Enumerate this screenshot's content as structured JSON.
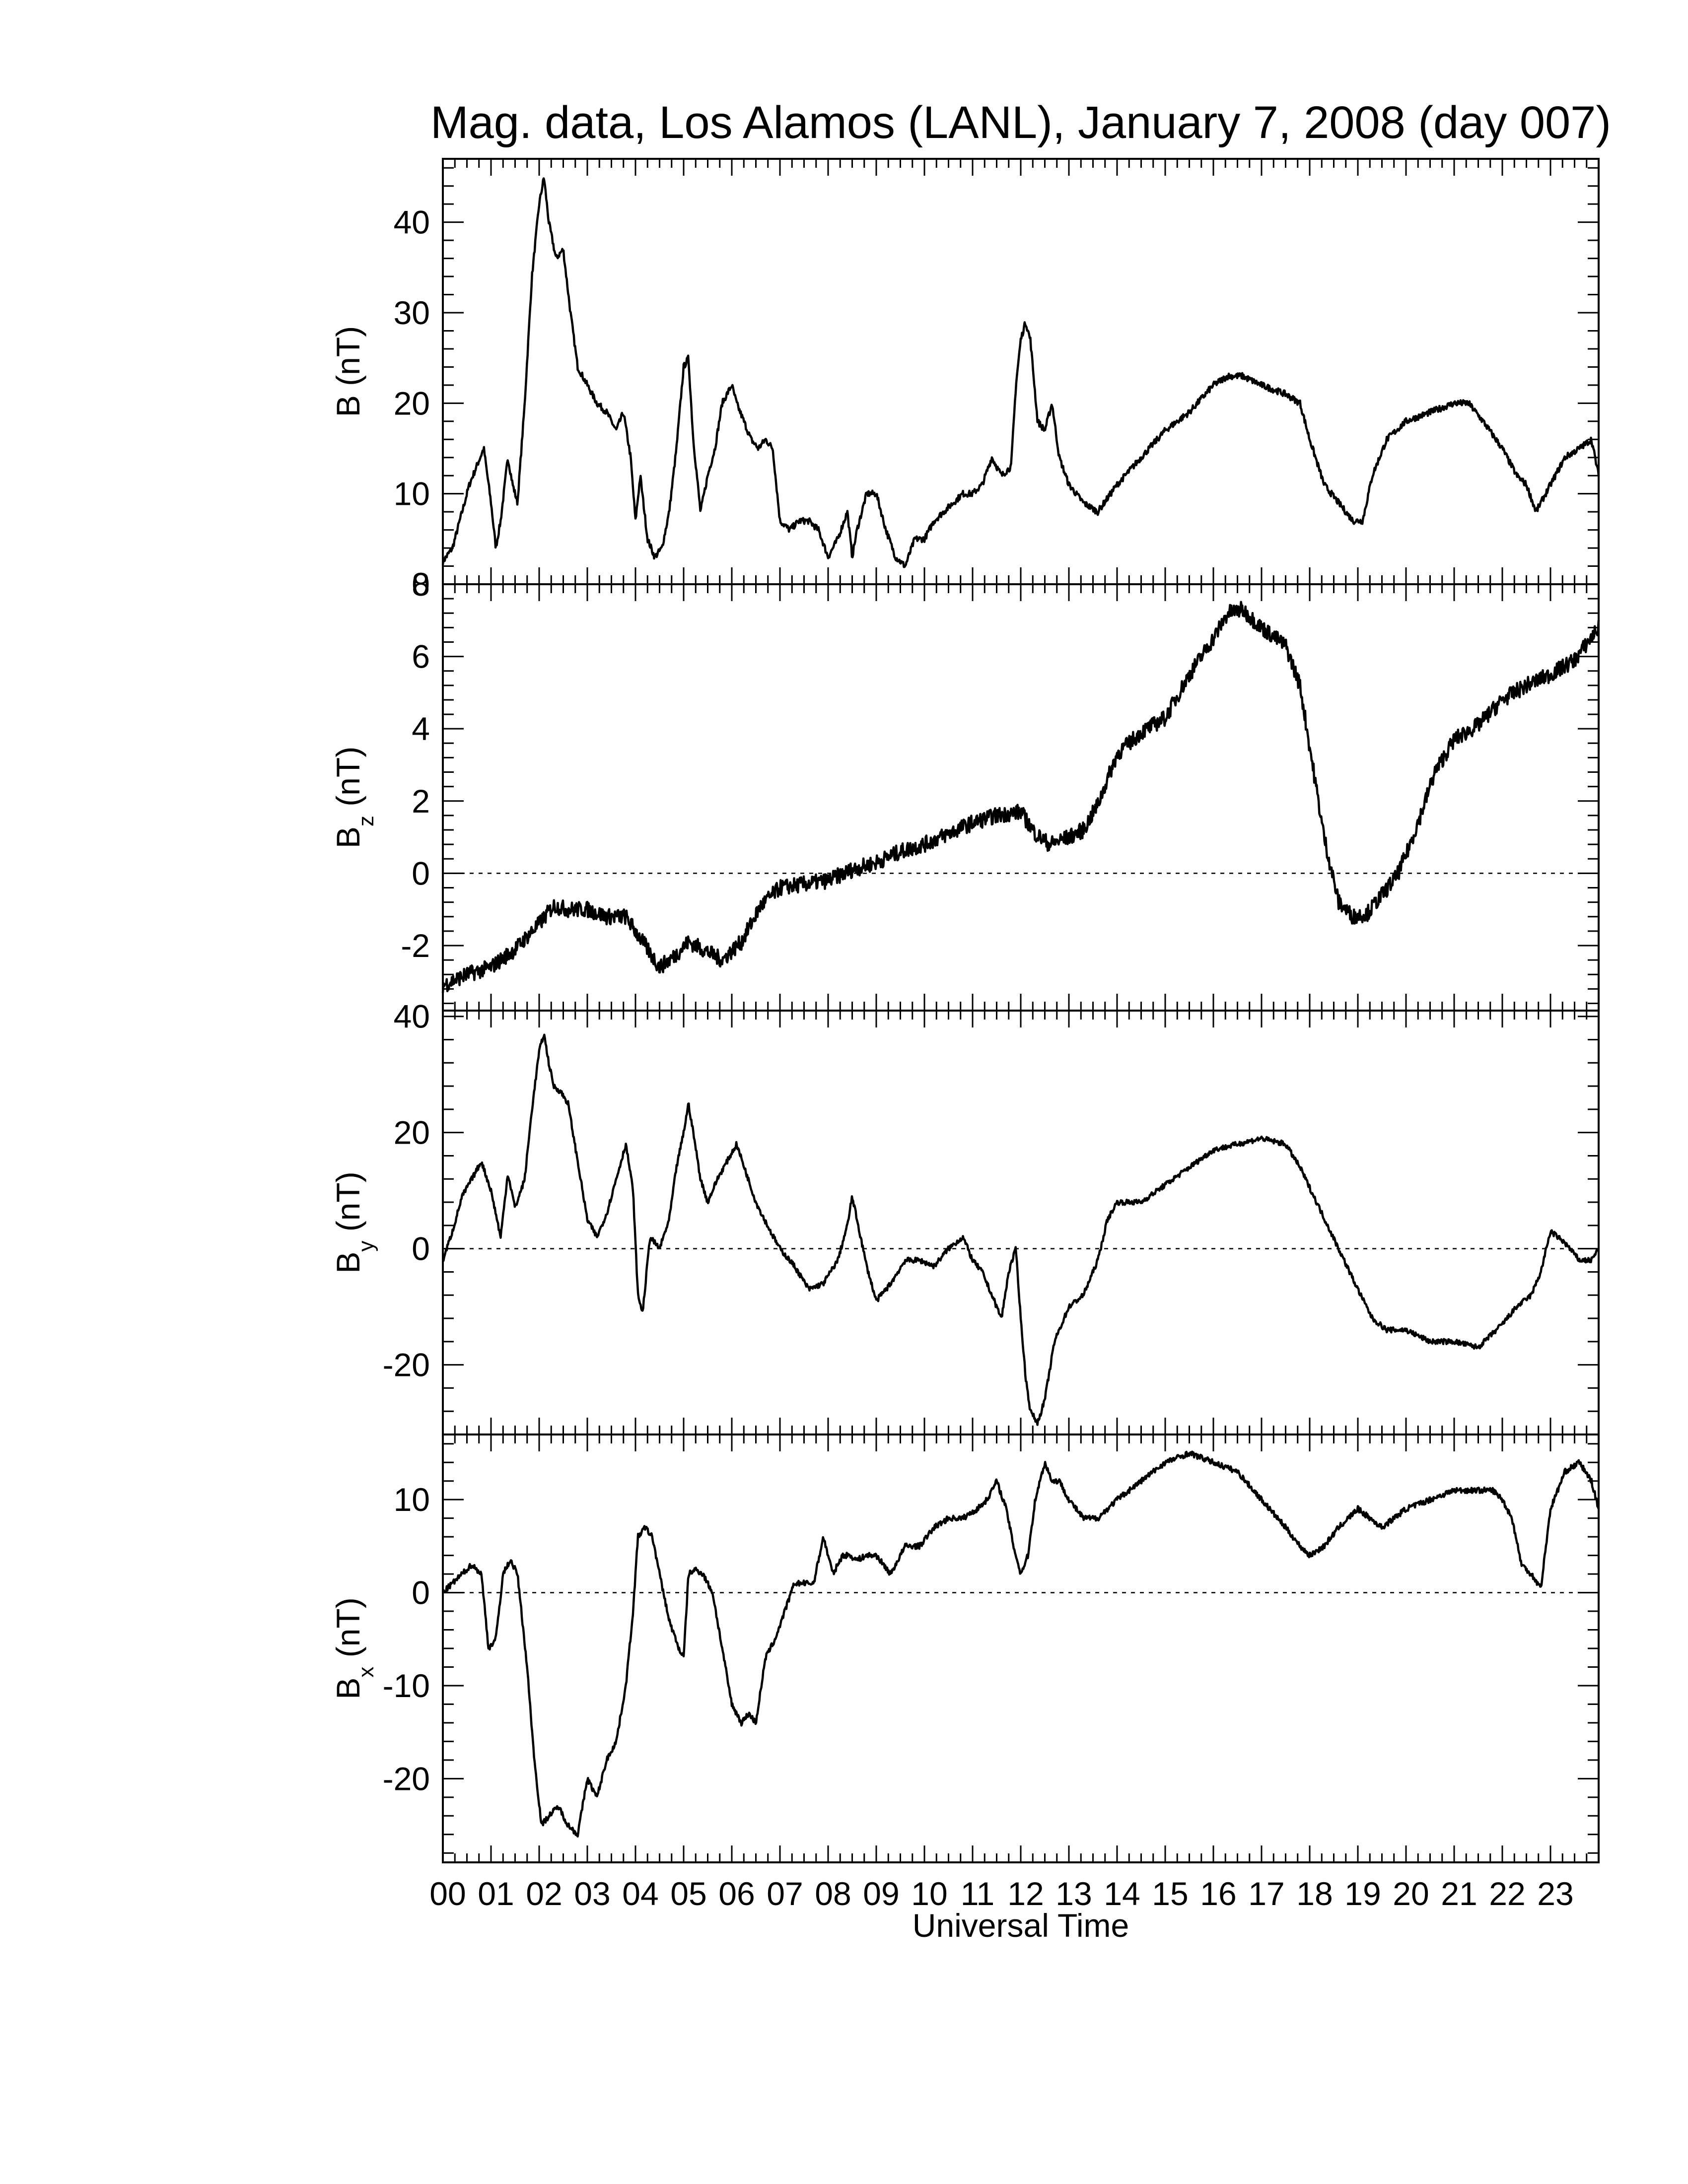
{
  "chart_data": {
    "type": "line",
    "title": "Mag. data, Los Alamos (LANL), January 7, 2008 (day 007)",
    "xlabel": "Universal Time",
    "xlim": [
      0,
      24
    ],
    "xticks": [
      "00",
      "01",
      "02",
      "03",
      "04",
      "05",
      "06",
      "07",
      "08",
      "09",
      "10",
      "11",
      "12",
      "13",
      "14",
      "15",
      "16",
      "17",
      "18",
      "19",
      "20",
      "21",
      "22",
      "23"
    ],
    "panels": [
      {
        "ylabel": "B",
        "subscript": "",
        "unit": "(nT)",
        "ylim": [
          0,
          47
        ],
        "yticks": [
          0,
          10,
          20,
          30,
          40
        ],
        "zero_line": false,
        "noise": 0.35,
        "series": {
          "x": [
            0,
            0.2,
            0.4,
            0.55,
            0.7,
            0.85,
            1.0,
            1.1,
            1.2,
            1.35,
            1.45,
            1.55,
            1.7,
            1.85,
            2.0,
            2.1,
            2.2,
            2.35,
            2.5,
            2.65,
            2.8,
            3.0,
            3.2,
            3.4,
            3.6,
            3.75,
            3.9,
            4.0,
            4.1,
            4.25,
            4.4,
            4.55,
            4.7,
            4.85,
            5.0,
            5.1,
            5.2,
            5.35,
            5.5,
            5.65,
            5.8,
            6.0,
            6.1,
            6.25,
            6.4,
            6.55,
            6.7,
            6.85,
            7.0,
            7.2,
            7.4,
            7.6,
            7.8,
            8.0,
            8.2,
            8.4,
            8.5,
            8.6,
            8.8,
            9.0,
            9.2,
            9.4,
            9.6,
            9.8,
            10.0,
            10.2,
            10.4,
            10.6,
            10.8,
            11.0,
            11.2,
            11.4,
            11.6,
            11.8,
            11.9,
            12.0,
            12.1,
            12.2,
            12.35,
            12.5,
            12.65,
            12.8,
            13.0,
            13.3,
            13.6,
            14.0,
            14.5,
            15.0,
            15.5,
            16.0,
            16.3,
            16.6,
            17.0,
            17.5,
            17.8,
            18.0,
            18.3,
            18.6,
            18.9,
            19.1,
            19.3,
            19.6,
            20.0,
            20.5,
            21.0,
            21.3,
            21.6,
            22.0,
            22.3,
            22.5,
            22.7,
            23.0,
            23.3,
            23.6,
            23.85,
            24.0
          ],
          "y": [
            2.5,
            4,
            8,
            11,
            13,
            15,
            9,
            4,
            7,
            14,
            11,
            9,
            20,
            34,
            42,
            45,
            40,
            36,
            37,
            30,
            24,
            22,
            20,
            19,
            17,
            19,
            14,
            7,
            12,
            5,
            3,
            4,
            8,
            15,
            24,
            25,
            16,
            8,
            12,
            15,
            20,
            22,
            20,
            18,
            16,
            15,
            16,
            15,
            7,
            6,
            7,
            7,
            6,
            3,
            5,
            8,
            3,
            6,
            10,
            10,
            6,
            3,
            2,
            5,
            5,
            7,
            8,
            9,
            10,
            10,
            11,
            14,
            12,
            13,
            22,
            27,
            29,
            27,
            18,
            17,
            20,
            14,
            11,
            9,
            8,
            11,
            14,
            17,
            19,
            22,
            23,
            23,
            22,
            21,
            20,
            16,
            11,
            9,
            7,
            7,
            12,
            16,
            18,
            19,
            20,
            20,
            18,
            15,
            12,
            11,
            8,
            11,
            14,
            15,
            16,
            12
          ]
        }
      },
      {
        "ylabel": "B",
        "subscript": "z",
        "unit": "(nT)",
        "ylim": [
          -3.8,
          8
        ],
        "yticks": [
          -2,
          0,
          2,
          4,
          6,
          8
        ],
        "zero_line": true,
        "noise": 0.22,
        "series": {
          "x": [
            0,
            0.5,
            1.0,
            1.5,
            2.0,
            2.3,
            2.6,
            3.0,
            3.4,
            3.8,
            4.2,
            4.5,
            4.8,
            5.1,
            5.4,
            5.8,
            6.2,
            6.6,
            7.0,
            7.5,
            8.0,
            8.5,
            9.0,
            9.5,
            10.0,
            10.5,
            11.0,
            11.5,
            12.0,
            12.3,
            12.6,
            13.0,
            13.3,
            13.6,
            14.0,
            14.5,
            15.0,
            15.5,
            16.0,
            16.3,
            16.6,
            17.0,
            17.5,
            17.8,
            18.0,
            18.3,
            18.6,
            18.9,
            19.2,
            19.5,
            19.8,
            20.0,
            20.3,
            20.6,
            21.0,
            21.5,
            22.0,
            22.5,
            23.0,
            23.5,
            24.0
          ],
          "y": [
            -3.1,
            -2.8,
            -2.6,
            -2.1,
            -1.4,
            -0.9,
            -1.0,
            -1.0,
            -1.2,
            -1.2,
            -2.0,
            -2.6,
            -2.3,
            -1.9,
            -2.1,
            -2.4,
            -1.9,
            -0.9,
            -0.4,
            -0.3,
            -0.2,
            0.1,
            0.3,
            0.6,
            0.8,
            1.1,
            1.4,
            1.6,
            1.7,
            1.1,
            0.8,
            1.0,
            1.2,
            1.9,
            3.3,
            3.9,
            4.3,
            5.5,
            6.5,
            7.2,
            7.3,
            6.8,
            6.3,
            5.2,
            3.5,
            1.0,
            -0.8,
            -1.2,
            -1.1,
            -0.6,
            -0.1,
            0.5,
            1.6,
            2.8,
            3.7,
            4.1,
            4.8,
            5.2,
            5.5,
            5.9,
            6.8
          ]
        }
      },
      {
        "ylabel": "B",
        "subscript": "y",
        "unit": "(nT)",
        "ylim": [
          -32,
          41
        ],
        "yticks": [
          -20,
          0,
          20,
          40
        ],
        "zero_line": true,
        "noise": 0.45,
        "series": {
          "x": [
            0,
            0.2,
            0.4,
            0.6,
            0.8,
            1.0,
            1.2,
            1.35,
            1.5,
            1.7,
            1.85,
            2.0,
            2.1,
            2.2,
            2.3,
            2.45,
            2.6,
            2.8,
            3.0,
            3.2,
            3.4,
            3.6,
            3.8,
            3.95,
            4.05,
            4.15,
            4.3,
            4.5,
            4.7,
            4.85,
            5.0,
            5.1,
            5.2,
            5.35,
            5.5,
            5.7,
            5.9,
            6.1,
            6.3,
            6.5,
            6.8,
            7.0,
            7.3,
            7.6,
            7.9,
            8.2,
            8.4,
            8.5,
            8.6,
            8.8,
            9.0,
            9.3,
            9.6,
            9.9,
            10.2,
            10.5,
            10.8,
            11.0,
            11.2,
            11.4,
            11.6,
            11.75,
            11.9,
            12.0,
            12.1,
            12.2,
            12.35,
            12.5,
            12.7,
            13.0,
            13.3,
            13.6,
            13.8,
            14.0,
            14.5,
            15.0,
            15.5,
            16.0,
            16.5,
            17.0,
            17.5,
            17.8,
            18.2,
            18.6,
            19.0,
            19.3,
            19.6,
            20.0,
            20.5,
            21.0,
            21.5,
            22.0,
            22.3,
            22.6,
            22.8,
            23.0,
            23.3,
            23.6,
            23.85,
            24.0
          ],
          "y": [
            -2,
            3,
            9,
            12,
            15,
            10,
            2,
            13,
            7,
            12,
            24,
            34,
            37,
            32,
            28,
            27,
            25,
            15,
            5,
            2,
            6,
            12,
            18,
            10,
            -8,
            -11,
            2,
            0,
            5,
            14,
            20,
            25,
            20,
            12,
            8,
            12,
            15,
            18,
            13,
            8,
            3,
            0,
            -3,
            -7,
            -6,
            -2,
            4,
            9,
            5,
            -3,
            -9,
            -6,
            -2,
            -2,
            -3,
            0,
            2,
            -2,
            -4,
            -8,
            -12,
            -4,
            0,
            -12,
            -22,
            -28,
            -30,
            -26,
            -16,
            -10,
            -8,
            -2,
            5,
            8,
            8,
            11,
            14,
            17,
            18,
            19,
            18,
            14,
            7,
            0,
            -7,
            -12,
            -14,
            -14,
            -16,
            -16,
            -17,
            -13,
            -10,
            -8,
            -4,
            3,
            1,
            -2,
            -2,
            0
          ]
        }
      },
      {
        "ylabel": "B",
        "subscript": "x",
        "unit": "(nT)",
        "ylim": [
          -29,
          17
        ],
        "yticks": [
          -20,
          -10,
          0,
          10
        ],
        "zero_line": true,
        "noise": 0.3,
        "series": {
          "x": [
            0,
            0.2,
            0.4,
            0.6,
            0.8,
            0.95,
            1.1,
            1.25,
            1.4,
            1.55,
            1.75,
            1.9,
            2.05,
            2.2,
            2.4,
            2.6,
            2.8,
            3.0,
            3.2,
            3.4,
            3.6,
            3.8,
            3.95,
            4.05,
            4.2,
            4.35,
            4.5,
            4.7,
            4.9,
            5.0,
            5.1,
            5.25,
            5.4,
            5.6,
            5.8,
            6.0,
            6.2,
            6.35,
            6.5,
            6.7,
            6.9,
            7.1,
            7.3,
            7.5,
            7.7,
            7.9,
            8.1,
            8.3,
            8.45,
            8.6,
            8.8,
            9.0,
            9.3,
            9.6,
            9.9,
            10.2,
            10.5,
            10.8,
            11.1,
            11.3,
            11.5,
            11.7,
            11.85,
            12.0,
            12.15,
            12.3,
            12.5,
            12.65,
            12.8,
            13.0,
            13.3,
            13.6,
            14.0,
            14.5,
            15.0,
            15.5,
            16.0,
            16.5,
            17.0,
            17.5,
            17.8,
            18.0,
            18.3,
            18.6,
            19.0,
            19.5,
            20.0,
            20.5,
            21.0,
            21.5,
            21.8,
            22.0,
            22.2,
            22.4,
            22.6,
            22.8,
            23.0,
            23.3,
            23.6,
            23.85,
            24.0
          ],
          "y": [
            0,
            1,
            2,
            3,
            2,
            -6,
            -5,
            2,
            3.5,
            2,
            -8,
            -18,
            -25,
            -24,
            -23,
            -25,
            -26,
            -20,
            -22,
            -18,
            -16,
            -10,
            -2,
            6,
            7,
            6,
            2,
            -3,
            -6,
            -7,
            2,
            2.5,
            2,
            0,
            -6,
            -12,
            -14,
            -13,
            -14,
            -7,
            -5,
            -2,
            1,
            1,
            1,
            6,
            2,
            4,
            4,
            3.5,
            4,
            4,
            2,
            5,
            5,
            7,
            8,
            8,
            9,
            10,
            12,
            9,
            5,
            2,
            4,
            10,
            14,
            12,
            12,
            10,
            8,
            8,
            10,
            12,
            14,
            15,
            14,
            13,
            10,
            7,
            5,
            4,
            5,
            7,
            9,
            7,
            9,
            10,
            11,
            11,
            11,
            10,
            8,
            3,
            2,
            0.5,
            9,
            13,
            14,
            12,
            9
          ]
        }
      }
    ]
  }
}
